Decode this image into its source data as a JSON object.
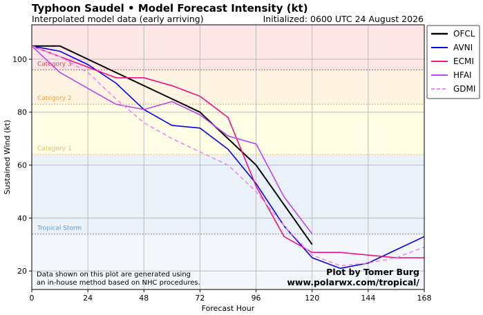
{
  "header": {
    "title": "Typhoon Saudel • Model Forecast Intensity (kt)",
    "subtitle": "Interpolated model data (early arriving)",
    "initialized": "Initialized: 0600 UTC 24 August 2026"
  },
  "notes": {
    "disclaimer_line1": "Data shown on this plot are generated using",
    "disclaimer_line2": "an in-house method based on NHC procedures.",
    "credit_line1": "Plot by Tomer Burg",
    "credit_line2": "www.polarwx.com/tropical/"
  },
  "chart_data": {
    "type": "line",
    "xlabel": "Forecast Hour",
    "ylabel": "Sustained Wind (kt)",
    "xlim": [
      0,
      168
    ],
    "ylim": [
      13,
      113
    ],
    "xticks": [
      0,
      24,
      48,
      72,
      96,
      120,
      144,
      168
    ],
    "yticks": [
      20,
      40,
      60,
      80,
      100
    ],
    "grid": true,
    "legend_position": "right-outside-top",
    "categories_bands": [
      {
        "label": "Tropical Storm",
        "min": 34,
        "max": 64,
        "line_color": "#5b9bd5",
        "fill": "#eaf1f9"
      },
      {
        "label": "Category 1",
        "min": 64,
        "max": 83,
        "line_color": "#e8c24a",
        "fill": "#fffde4"
      },
      {
        "label": "Category 2",
        "min": 83,
        "max": 96,
        "line_color": "#f0a040",
        "fill": "#fff3e2"
      },
      {
        "label": "Category 3",
        "min": 96,
        "max": 113,
        "line_color": "#e04040",
        "fill": "#fde6e6"
      }
    ],
    "below_ts_fill": "#f3f7fb",
    "series": [
      {
        "name": "OFCL",
        "color": "#000000",
        "dash": "",
        "width": 2,
        "x": [
          0,
          12,
          24,
          36,
          48,
          60,
          72,
          84,
          96,
          108,
          120
        ],
        "y": [
          105,
          105,
          100,
          95,
          90,
          85,
          80,
          70,
          60,
          45,
          30
        ]
      },
      {
        "name": "AVNI",
        "color": "#0000ee",
        "dash": "",
        "width": 1.6,
        "x": [
          0,
          12,
          24,
          36,
          48,
          60,
          72,
          84,
          96,
          108,
          120,
          132,
          144,
          156,
          168
        ],
        "y": [
          105,
          103,
          98,
          91,
          81,
          75,
          74,
          66,
          53,
          37,
          25,
          21,
          23,
          28,
          33
        ]
      },
      {
        "name": "ECMI",
        "color": "#ee1188",
        "dash": "",
        "width": 1.6,
        "x": [
          0,
          12,
          24,
          36,
          48,
          60,
          72,
          84,
          96,
          108,
          120,
          132,
          144,
          156,
          168
        ],
        "y": [
          105,
          101,
          97,
          93,
          93,
          90,
          86,
          78,
          52,
          33,
          27,
          27,
          26,
          25,
          25
        ]
      },
      {
        "name": "HFAI",
        "color": "#bb44ee",
        "dash": "",
        "width": 1.6,
        "x": [
          0,
          12,
          24,
          36,
          48,
          60,
          72,
          84,
          96,
          108,
          120
        ],
        "y": [
          105,
          95,
          89,
          83,
          81,
          84,
          79,
          71,
          68,
          48,
          34
        ]
      },
      {
        "name": "GDMI",
        "color": "#ee88ee",
        "dash": "6,4",
        "width": 1.6,
        "x": [
          0,
          12,
          24,
          36,
          48,
          60,
          72,
          84,
          96,
          108,
          120,
          132,
          144,
          156,
          168
        ],
        "y": [
          105,
          101,
          95,
          85,
          76,
          70,
          65,
          60,
          50,
          37,
          26,
          22,
          23,
          25,
          29
        ]
      }
    ]
  }
}
